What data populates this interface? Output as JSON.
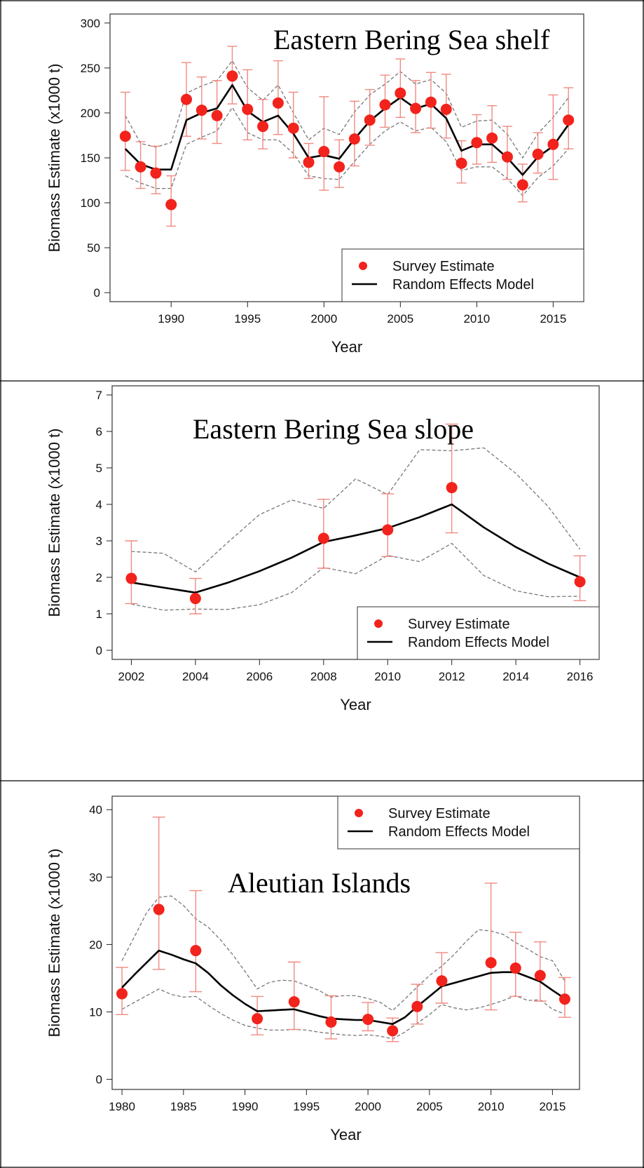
{
  "chart_data": [
    {
      "type": "line",
      "title": "Eastern Bering Sea shelf",
      "xlabel": "Year",
      "ylabel": "Biomass Estimate (x1000 t)",
      "xlim": [
        1986,
        2017
      ],
      "ylim": [
        -10,
        310
      ],
      "xticks": [
        1990,
        1995,
        2000,
        2005,
        2010,
        2015
      ],
      "yticks": [
        0,
        50,
        100,
        150,
        200,
        250,
        300
      ],
      "legend_position": "bottom-right",
      "legend": [
        "Survey Estimate",
        "Random Effects Model"
      ],
      "colors": {
        "survey": "#f2231c",
        "error": "#f08a80",
        "model": "#000000",
        "ci": "#777777"
      },
      "survey": {
        "x": [
          1987,
          1988,
          1989,
          1990,
          1991,
          1992,
          1993,
          1994,
          1995,
          1996,
          1997,
          1998,
          1999,
          2000,
          2001,
          2002,
          2003,
          2004,
          2005,
          2006,
          2007,
          2008,
          2009,
          2010,
          2011,
          2012,
          2013,
          2014,
          2015,
          2016
        ],
        "y": [
          174,
          140,
          133,
          98,
          215,
          203,
          197,
          241,
          204,
          185,
          211,
          183,
          145,
          157,
          140,
          171,
          192,
          209,
          222,
          205,
          212,
          204,
          144,
          167,
          172,
          151,
          120,
          154,
          165,
          192
        ],
        "low": [
          136,
          116,
          110,
          74,
          174,
          171,
          166,
          210,
          170,
          160,
          176,
          150,
          127,
          114,
          117,
          141,
          164,
          184,
          195,
          178,
          183,
          172,
          122,
          143,
          145,
          126,
          101,
          133,
          126,
          160
        ],
        "high": [
          223,
          168,
          163,
          130,
          256,
          240,
          236,
          274,
          248,
          215,
          258,
          223,
          166,
          218,
          170,
          213,
          226,
          242,
          260,
          236,
          245,
          243,
          169,
          198,
          208,
          185,
          143,
          178,
          220,
          228
        ]
      },
      "model": {
        "x": [
          1987,
          1988,
          1989,
          1990,
          1991,
          1992,
          1993,
          1994,
          1995,
          1996,
          1997,
          1998,
          1999,
          2000,
          2001,
          2002,
          2003,
          2004,
          2005,
          2006,
          2007,
          2008,
          2009,
          2010,
          2011,
          2012,
          2013,
          2014,
          2015,
          2016
        ],
        "y": [
          160,
          143,
          137,
          137,
          192,
          200,
          205,
          231,
          202,
          190,
          197,
          177,
          150,
          153,
          149,
          171,
          191,
          205,
          217,
          205,
          210,
          194,
          158,
          165,
          165,
          150,
          131,
          151,
          163,
          187
        ],
        "low": [
          130,
          122,
          116,
          116,
          165,
          173,
          180,
          206,
          178,
          170,
          170,
          155,
          130,
          127,
          126,
          146,
          165,
          180,
          190,
          180,
          184,
          168,
          136,
          140,
          140,
          127,
          108,
          128,
          141,
          160
        ],
        "high": [
          197,
          166,
          162,
          167,
          222,
          230,
          236,
          258,
          228,
          214,
          231,
          200,
          170,
          183,
          176,
          201,
          220,
          232,
          246,
          232,
          237,
          222,
          184,
          191,
          192,
          176,
          150,
          177,
          195,
          217
        ]
      }
    },
    {
      "type": "line",
      "title": "Eastern Bering Sea slope",
      "xlabel": "Year",
      "ylabel": "Biomass Estimate (x1000 t)",
      "xlim": [
        2001.4,
        2016.6
      ],
      "ylim": [
        -0.25,
        7.25
      ],
      "xticks": [
        2002,
        2004,
        2006,
        2008,
        2010,
        2012,
        2014,
        2016
      ],
      "yticks": [
        0,
        1,
        2,
        3,
        4,
        5,
        6,
        7
      ],
      "legend_position": "bottom-right",
      "legend": [
        "Survey Estimate",
        "Random Effects Model"
      ],
      "colors": {
        "survey": "#f2231c",
        "error": "#f08a80",
        "model": "#000000",
        "ci": "#777777"
      },
      "survey": {
        "x": [
          2002,
          2004,
          2008,
          2010,
          2012,
          2016
        ],
        "y": [
          1.97,
          1.42,
          3.07,
          3.3,
          4.46,
          1.88
        ],
        "low": [
          1.28,
          1.0,
          2.25,
          2.57,
          3.22,
          1.36
        ],
        "high": [
          3.0,
          1.97,
          4.14,
          4.29,
          6.2,
          2.59
        ]
      },
      "model": {
        "x": [
          2002,
          2003,
          2004,
          2005,
          2006,
          2007,
          2008,
          2009,
          2010,
          2011,
          2012,
          2013,
          2014,
          2015,
          2016
        ],
        "y": [
          1.86,
          1.72,
          1.58,
          1.85,
          2.17,
          2.54,
          2.97,
          3.15,
          3.35,
          3.65,
          4.0,
          3.37,
          2.83,
          2.38,
          2.0
        ],
        "low": [
          1.27,
          1.1,
          1.13,
          1.12,
          1.25,
          1.58,
          2.27,
          2.1,
          2.6,
          2.43,
          2.93,
          2.05,
          1.63,
          1.47,
          1.48
        ],
        "high": [
          2.71,
          2.66,
          2.15,
          2.95,
          3.72,
          4.12,
          3.89,
          4.7,
          4.27,
          5.5,
          5.47,
          5.55,
          4.85,
          3.95,
          2.77
        ]
      }
    },
    {
      "type": "line",
      "title": "Aleutian Islands",
      "xlabel": "Year",
      "ylabel": "Biomass Estimate (x1000 t)",
      "xlim": [
        1979.2,
        2017.2
      ],
      "ylim": [
        -1.5,
        42
      ],
      "xticks": [
        1980,
        1985,
        1990,
        1995,
        2000,
        2005,
        2010,
        2015
      ],
      "yticks": [
        0,
        10,
        20,
        30,
        40
      ],
      "legend_position": "top-right",
      "legend": [
        "Survey Estimate",
        "Random Effects Model"
      ],
      "colors": {
        "survey": "#f2231c",
        "error": "#f08a80",
        "model": "#000000",
        "ci": "#777777"
      },
      "survey": {
        "x": [
          1980,
          1983,
          1986,
          1991,
          1994,
          1997,
          2000,
          2002,
          2004,
          2006,
          2010,
          2012,
          2014,
          2016
        ],
        "y": [
          12.7,
          25.2,
          19.1,
          9.0,
          11.5,
          8.5,
          8.9,
          7.2,
          10.8,
          14.6,
          17.3,
          16.5,
          15.4,
          11.9
        ],
        "low": [
          9.6,
          16.3,
          13.0,
          6.6,
          7.4,
          6.0,
          7.2,
          5.6,
          8.2,
          11.3,
          10.3,
          12.3,
          11.6,
          9.2
        ],
        "high": [
          16.6,
          38.9,
          28.0,
          12.3,
          17.4,
          12.4,
          11.4,
          9.1,
          14.1,
          18.8,
          29.1,
          21.8,
          20.4,
          15.1
        ]
      },
      "model": {
        "x": [
          1980,
          1981,
          1982,
          1983,
          1984,
          1985,
          1986,
          1987,
          1988,
          1989,
          1990,
          1991,
          1992,
          1993,
          1994,
          1995,
          1996,
          1997,
          1998,
          1999,
          2000,
          2001,
          2002,
          2003,
          2004,
          2005,
          2006,
          2007,
          2008,
          2009,
          2010,
          2011,
          2012,
          2013,
          2014,
          2015,
          2016
        ],
        "y": [
          13.6,
          15.5,
          17.3,
          19.1,
          18.5,
          17.8,
          17.2,
          15.8,
          14.0,
          12.5,
          11.2,
          10.1,
          10.2,
          10.3,
          10.4,
          9.9,
          9.4,
          9.0,
          8.9,
          8.8,
          8.8,
          8.5,
          8.2,
          9.2,
          10.8,
          12.3,
          13.8,
          14.3,
          14.8,
          15.3,
          15.8,
          15.9,
          15.9,
          15.2,
          14.5,
          13.2,
          12.0
        ],
        "low": [
          10.4,
          11.4,
          12.4,
          13.4,
          12.6,
          12.2,
          12.3,
          11.0,
          9.8,
          8.8,
          8.0,
          7.6,
          7.3,
          7.3,
          7.4,
          7.3,
          7.0,
          6.8,
          6.6,
          6.5,
          6.6,
          6.4,
          6.0,
          7.0,
          8.3,
          9.6,
          11.1,
          10.6,
          10.3,
          10.6,
          11.1,
          11.7,
          12.4,
          11.7,
          11.8,
          10.4,
          9.7
        ],
        "high": [
          17.6,
          21.1,
          24.7,
          27.0,
          27.2,
          25.8,
          23.8,
          22.6,
          20.7,
          18.5,
          16.0,
          13.4,
          14.4,
          14.7,
          14.6,
          13.9,
          13.2,
          12.2,
          12.4,
          12.4,
          12.0,
          11.4,
          10.2,
          11.9,
          13.7,
          15.4,
          16.8,
          18.5,
          20.5,
          22.2,
          22.0,
          21.5,
          20.3,
          19.3,
          18.2,
          17.6,
          14.6
        ]
      }
    }
  ]
}
